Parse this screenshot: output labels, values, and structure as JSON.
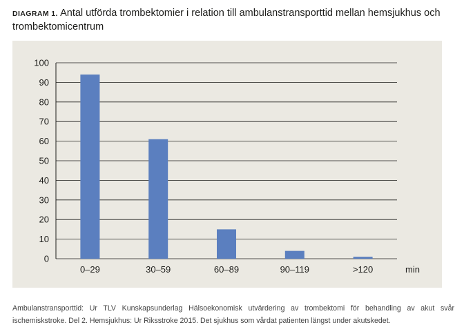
{
  "figure": {
    "prefix": "DIAGRAM 1.",
    "title": "Antal utförda trombektomier i relation till ambulanstransporttid mellan hemsjukhus och trombektomicentrum",
    "footnote": "Ambulanstransporttid: Ur TLV Kunskapsunderlag Hälsoekonomisk utvärdering av trombektomi för behandling av akut svår ischemiskstroke. Del 2. Hemsjukhus: Ur Riksstroke 2015. Det sjukhus som vårdat patienten längst under akutskedet."
  },
  "colors": {
    "bar": "#5b7fbf",
    "panel": "#ebe9e2",
    "grid": "#1d1d1b"
  },
  "chart_data": {
    "type": "bar",
    "title": "Antal utförda trombektomier i relation till ambulanstransporttid mellan hemsjukhus och trombektomicentrum",
    "categories": [
      "0–29",
      "30–59",
      "60–89",
      "90–119",
      ">120"
    ],
    "values": [
      94,
      61,
      15,
      4,
      1
    ],
    "xlabel": "min",
    "ylabel": "",
    "ylim": [
      0,
      100
    ],
    "yticks": [
      "0",
      "10",
      "20",
      "30",
      "40",
      "50",
      "60",
      "70",
      "80",
      "90",
      "100"
    ],
    "grid": true,
    "legend": "none"
  }
}
